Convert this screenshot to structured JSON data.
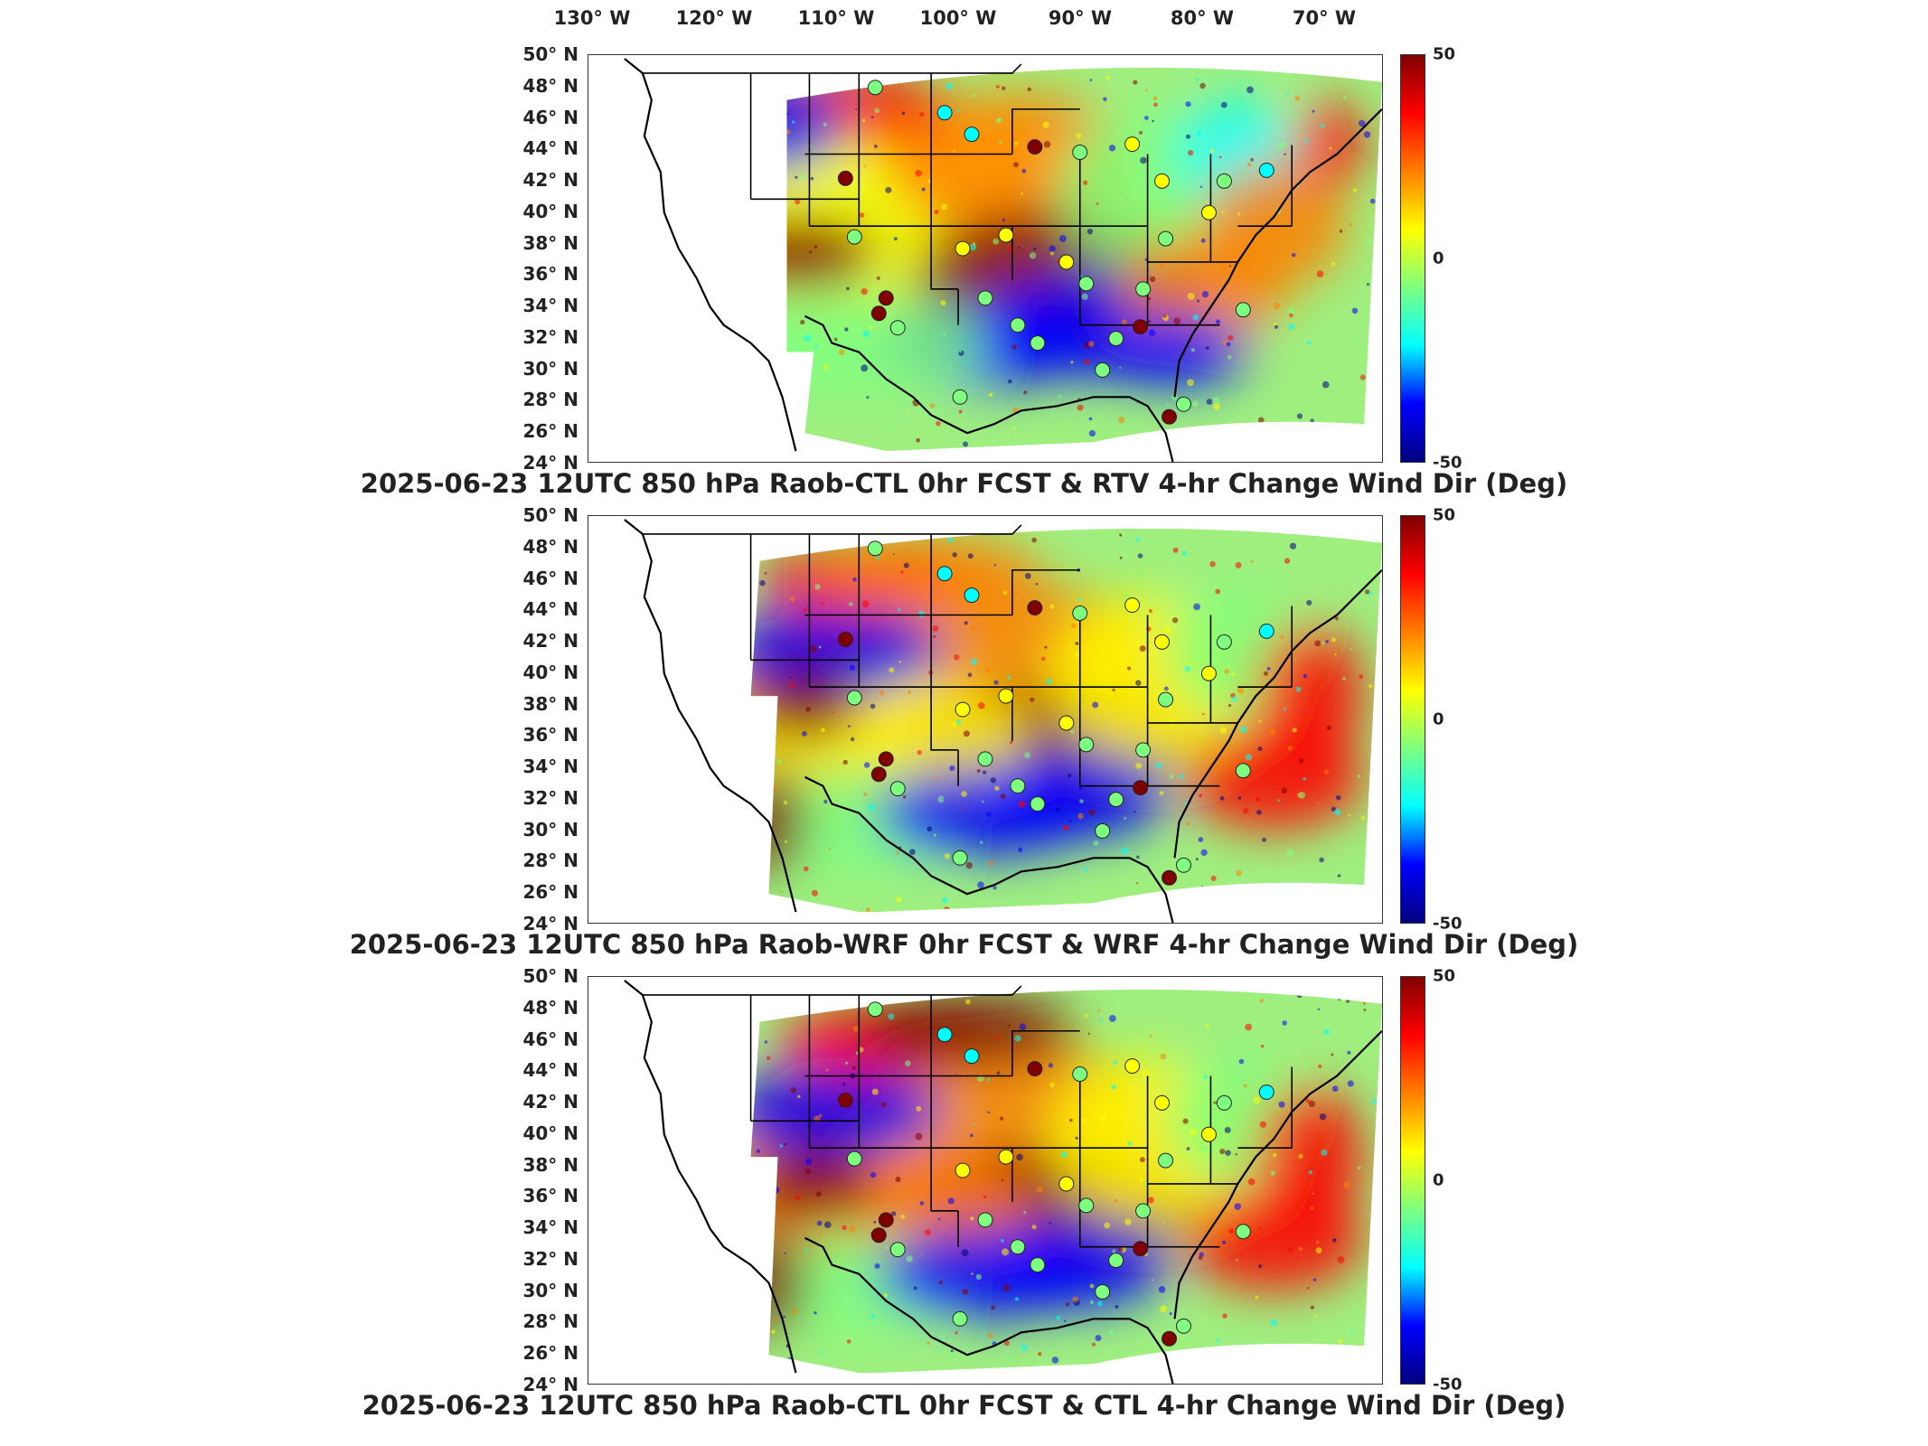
{
  "lon_labels": [
    "130° W",
    "120° W",
    "110° W",
    "100° W",
    "90° W",
    "80° W",
    "70° W"
  ],
  "lat_labels": [
    "50° N",
    "48° N",
    "46° N",
    "44° N",
    "42° N",
    "40° N",
    "38° N",
    "36° N",
    "34° N",
    "32° N",
    "30° N",
    "28° N",
    "26° N",
    "24° N"
  ],
  "colorbar": {
    "max": "50",
    "mid": "0",
    "min": "-50",
    "colors": [
      "#00007f",
      "#0000ff",
      "#00ffff",
      "#7fff7f",
      "#ffff00",
      "#ff7f00",
      "#ff0000",
      "#7f0000"
    ]
  },
  "panels": [
    {
      "title": "2025-06-23 12UTC 850 hPa Raob-CTL 0hr FCST & RTV 4-hr Change Wind Dir (Deg)"
    },
    {
      "title": "2025-06-23 12UTC 850 hPa Raob-WRF 0hr FCST & WRF 4-hr Change Wind Dir (Deg)"
    },
    {
      "title": "2025-06-23 12UTC 850 hPa Raob-CTL 0hr FCST & CTL 4-hr Change Wind Dir (Deg)"
    }
  ]
}
